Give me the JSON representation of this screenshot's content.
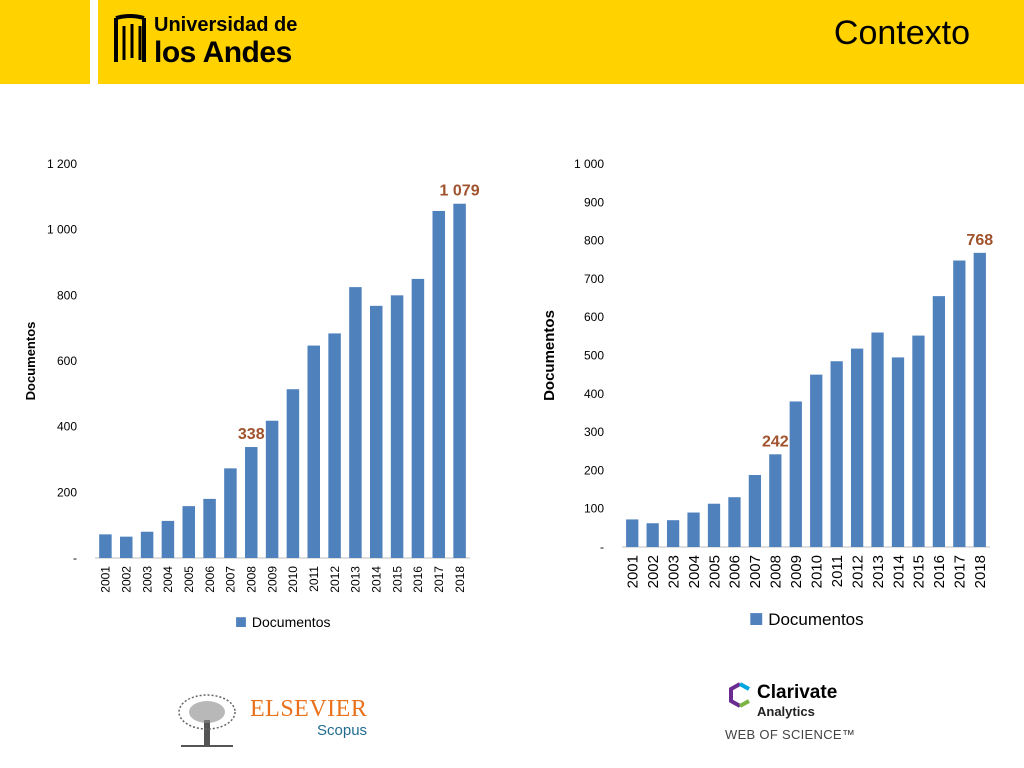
{
  "header": {
    "logo_line1": "Universidad de",
    "logo_line2": "los Andes",
    "title": "Contexto"
  },
  "colors": {
    "header_bg": "#FFD200",
    "bar": "#4F81BD",
    "highlight": "#A0522D"
  },
  "chart_data": [
    {
      "type": "bar",
      "categories": [
        "2001",
        "2002",
        "2003",
        "2004",
        "2005",
        "2006",
        "2007",
        "2008",
        "2009",
        "2010",
        "2011",
        "2012",
        "2013",
        "2014",
        "2015",
        "2016",
        "2017",
        "2018"
      ],
      "series": [
        {
          "name": "Documentos",
          "values": [
            72,
            65,
            80,
            113,
            158,
            180,
            273,
            338,
            418,
            514,
            647,
            684,
            825,
            768,
            800,
            850,
            1057,
            1079
          ]
        }
      ],
      "ylabel": "Documentos",
      "ylim": [
        0,
        1200
      ],
      "yticks": [
        0,
        200,
        400,
        600,
        800,
        1000,
        1200
      ],
      "ytick_labels": [
        "-",
        "200",
        "400",
        "600",
        "800",
        "1 000",
        "1 200"
      ],
      "annotations": [
        {
          "category": "2008",
          "text": "338"
        },
        {
          "category": "2018",
          "text": "1 079"
        }
      ],
      "legend": "bottom",
      "grid": false
    },
    {
      "type": "bar",
      "categories": [
        "2001",
        "2002",
        "2003",
        "2004",
        "2005",
        "2006",
        "2007",
        "2008",
        "2009",
        "2010",
        "2011",
        "2012",
        "2013",
        "2014",
        "2015",
        "2016",
        "2017",
        "2018"
      ],
      "series": [
        {
          "name": "Documentos",
          "values": [
            72,
            62,
            70,
            90,
            113,
            130,
            188,
            242,
            380,
            450,
            485,
            518,
            560,
            495,
            552,
            655,
            748,
            768
          ]
        }
      ],
      "ylabel": "Documentos",
      "ylim": [
        0,
        1000
      ],
      "yticks": [
        0,
        100,
        200,
        300,
        400,
        500,
        600,
        700,
        800,
        900,
        1000
      ],
      "ytick_labels": [
        "-",
        "100",
        "200",
        "300",
        "400",
        "500",
        "600",
        "700",
        "800",
        "900",
        "1 000"
      ],
      "annotations": [
        {
          "category": "2008",
          "text": "242"
        },
        {
          "category": "2018",
          "text": "768"
        }
      ],
      "legend": "bottom",
      "grid": false
    }
  ],
  "footer": {
    "elsevier_word": "ELSEVIER",
    "scopus_word": "Scopus",
    "clarivate_name": "Clarivate",
    "clarivate_sub": "Analytics",
    "wos": "WEB OF SCIENCE™"
  }
}
